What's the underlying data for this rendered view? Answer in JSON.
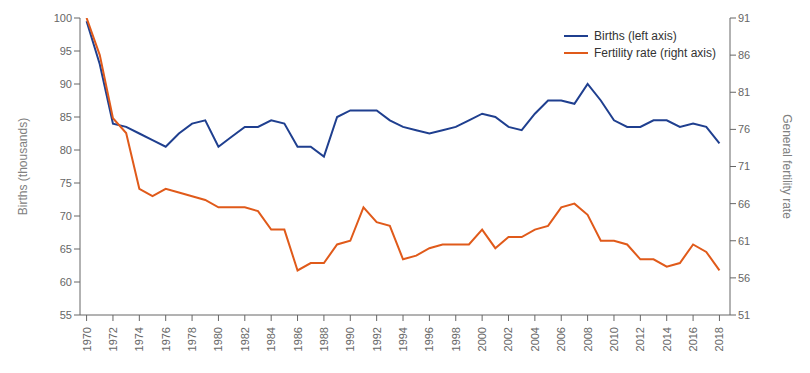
{
  "chart_data": {
    "type": "line",
    "x": [
      1970,
      1971,
      1972,
      1973,
      1974,
      1975,
      1976,
      1977,
      1978,
      1979,
      1980,
      1981,
      1982,
      1983,
      1984,
      1985,
      1986,
      1987,
      1988,
      1989,
      1990,
      1991,
      1992,
      1993,
      1994,
      1995,
      1996,
      1997,
      1998,
      1999,
      2000,
      2001,
      2002,
      2003,
      2004,
      2005,
      2006,
      2007,
      2008,
      2009,
      2010,
      2011,
      2012,
      2013,
      2014,
      2015,
      2016,
      2017,
      2018
    ],
    "series": [
      {
        "name": "Births (left axis)",
        "color": "#1f3f8f",
        "axis": "y",
        "values": [
          99.5,
          93.0,
          84.0,
          83.5,
          82.5,
          81.5,
          80.5,
          82.5,
          84.0,
          84.5,
          80.5,
          82.0,
          83.5,
          83.5,
          84.5,
          84.0,
          80.5,
          80.5,
          79.0,
          85.0,
          86.0,
          86.0,
          86.0,
          84.5,
          83.5,
          83.0,
          82.5,
          83.0,
          83.5,
          84.5,
          85.5,
          85.0,
          83.5,
          83.0,
          85.5,
          87.5,
          87.5,
          87.0,
          90.0,
          87.5,
          84.5,
          83.5,
          83.5,
          84.5,
          84.5,
          83.5,
          84.0,
          83.5,
          81.0
        ]
      },
      {
        "name": "Fertility rate (right axis)",
        "color": "#e05a1a",
        "axis": "y2",
        "values": [
          91.0,
          86.0,
          77.5,
          75.5,
          68.0,
          67.0,
          68.0,
          67.5,
          67.0,
          66.5,
          65.5,
          65.5,
          65.5,
          65.0,
          62.5,
          62.5,
          57.0,
          58.0,
          58.0,
          60.5,
          61.0,
          65.5,
          63.5,
          63.0,
          58.5,
          59.0,
          60.0,
          60.5,
          60.5,
          60.5,
          62.5,
          60.0,
          61.5,
          61.5,
          62.5,
          63.0,
          65.5,
          66.0,
          64.5,
          61.0,
          61.0,
          60.5,
          58.5,
          58.5,
          57.5,
          58.0,
          60.5,
          59.5,
          57.0
        ]
      }
    ],
    "ylabel": "Births (thousands)",
    "y2label": "General fertility rate",
    "xlim": [
      1969.5,
      2018.8
    ],
    "xticks": [
      1970,
      1972,
      1974,
      1976,
      1978,
      1980,
      1982,
      1984,
      1986,
      1988,
      1990,
      1992,
      1994,
      1996,
      1998,
      2000,
      2002,
      2004,
      2006,
      2008,
      2010,
      2012,
      2014,
      2016,
      2018
    ],
    "ylim": [
      55,
      100
    ],
    "yticks": [
      55,
      60,
      65,
      70,
      75,
      80,
      85,
      90,
      95,
      100
    ],
    "y2lim": [
      51,
      91
    ],
    "y2ticks": [
      51,
      56,
      61,
      66,
      71,
      76,
      81,
      86,
      91
    ],
    "legend": "upper right",
    "grid": false
  }
}
